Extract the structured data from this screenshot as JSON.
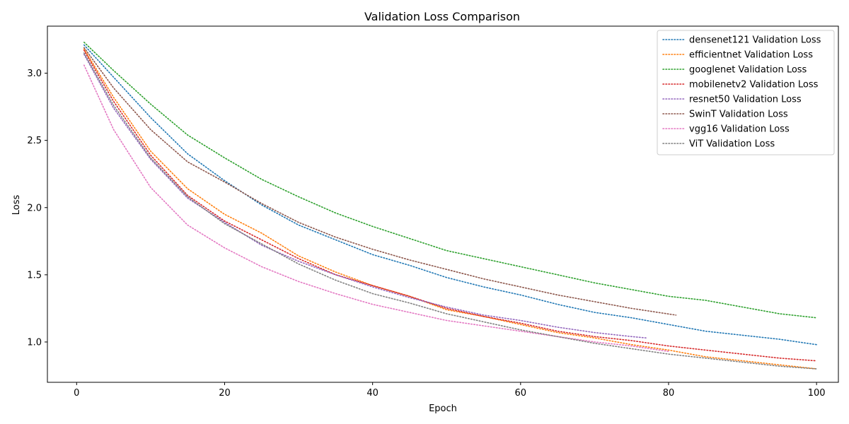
{
  "chart_data": {
    "type": "line",
    "title": "Validation Loss Comparison",
    "xlabel": "Epoch",
    "ylabel": "Loss",
    "xlim": [
      -3.95,
      102.95
    ],
    "ylim": [
      0.7,
      3.35
    ],
    "xticks": [
      0,
      20,
      40,
      60,
      80,
      100
    ],
    "yticks": [
      1.0,
      1.5,
      2.0,
      2.5,
      3.0
    ],
    "grid": false,
    "legend_position": "top-right",
    "line_style": "dotted",
    "series": [
      {
        "name": "densenet121 Validation Loss",
        "color": "#1f77b4",
        "points": [
          [
            1,
            3.21
          ],
          [
            5,
            2.97
          ],
          [
            10,
            2.67
          ],
          [
            15,
            2.4
          ],
          [
            20,
            2.2
          ],
          [
            25,
            2.02
          ],
          [
            30,
            1.87
          ],
          [
            35,
            1.76
          ],
          [
            40,
            1.65
          ],
          [
            45,
            1.57
          ],
          [
            50,
            1.48
          ],
          [
            55,
            1.41
          ],
          [
            60,
            1.35
          ],
          [
            65,
            1.28
          ],
          [
            70,
            1.22
          ],
          [
            75,
            1.18
          ],
          [
            80,
            1.13
          ],
          [
            85,
            1.08
          ],
          [
            90,
            1.05
          ],
          [
            95,
            1.02
          ],
          [
            100,
            0.98
          ]
        ]
      },
      {
        "name": "efficientnet Validation Loss",
        "color": "#ff7f0e",
        "points": [
          [
            1,
            3.18
          ],
          [
            5,
            2.82
          ],
          [
            10,
            2.42
          ],
          [
            15,
            2.14
          ],
          [
            20,
            1.95
          ],
          [
            25,
            1.81
          ],
          [
            30,
            1.64
          ],
          [
            35,
            1.52
          ],
          [
            40,
            1.42
          ],
          [
            45,
            1.34
          ],
          [
            50,
            1.24
          ],
          [
            55,
            1.19
          ],
          [
            60,
            1.13
          ],
          [
            65,
            1.07
          ],
          [
            70,
            1.03
          ],
          [
            75,
            0.98
          ],
          [
            80,
            0.94
          ],
          [
            85,
            0.89
          ],
          [
            90,
            0.86
          ],
          [
            95,
            0.83
          ],
          [
            100,
            0.8
          ]
        ]
      },
      {
        "name": "googlenet Validation Loss",
        "color": "#2ca02c",
        "points": [
          [
            1,
            3.23
          ],
          [
            5,
            3.02
          ],
          [
            10,
            2.77
          ],
          [
            15,
            2.54
          ],
          [
            20,
            2.37
          ],
          [
            25,
            2.21
          ],
          [
            30,
            2.08
          ],
          [
            35,
            1.96
          ],
          [
            40,
            1.86
          ],
          [
            45,
            1.77
          ],
          [
            50,
            1.68
          ],
          [
            55,
            1.62
          ],
          [
            60,
            1.56
          ],
          [
            65,
            1.5
          ],
          [
            70,
            1.44
          ],
          [
            75,
            1.39
          ],
          [
            80,
            1.34
          ],
          [
            85,
            1.31
          ],
          [
            90,
            1.26
          ],
          [
            95,
            1.21
          ],
          [
            100,
            1.18
          ]
        ]
      },
      {
        "name": "mobilenetv2 Validation Loss",
        "color": "#d62728",
        "points": [
          [
            1,
            3.17
          ],
          [
            5,
            2.79
          ],
          [
            10,
            2.39
          ],
          [
            15,
            2.09
          ],
          [
            20,
            1.9
          ],
          [
            25,
            1.76
          ],
          [
            30,
            1.62
          ],
          [
            35,
            1.5
          ],
          [
            40,
            1.42
          ],
          [
            45,
            1.34
          ],
          [
            50,
            1.25
          ],
          [
            55,
            1.19
          ],
          [
            60,
            1.14
          ],
          [
            65,
            1.08
          ],
          [
            70,
            1.04
          ],
          [
            75,
            1.01
          ],
          [
            80,
            0.97
          ],
          [
            85,
            0.94
          ],
          [
            90,
            0.91
          ],
          [
            95,
            0.88
          ],
          [
            100,
            0.86
          ]
        ]
      },
      {
        "name": "resnet50 Validation Loss",
        "color": "#9467bd",
        "points": [
          [
            1,
            3.14
          ],
          [
            5,
            2.74
          ],
          [
            10,
            2.36
          ],
          [
            15,
            2.07
          ],
          [
            20,
            1.89
          ],
          [
            25,
            1.72
          ],
          [
            30,
            1.6
          ],
          [
            35,
            1.5
          ],
          [
            40,
            1.41
          ],
          [
            45,
            1.33
          ],
          [
            50,
            1.26
          ],
          [
            55,
            1.2
          ],
          [
            60,
            1.16
          ],
          [
            65,
            1.11
          ],
          [
            70,
            1.07
          ],
          [
            75,
            1.04
          ],
          [
            77,
            1.03
          ]
        ]
      },
      {
        "name": "SwinT Validation Loss",
        "color": "#8c564b",
        "points": [
          [
            1,
            3.19
          ],
          [
            5,
            2.89
          ],
          [
            10,
            2.58
          ],
          [
            15,
            2.34
          ],
          [
            20,
            2.19
          ],
          [
            25,
            2.03
          ],
          [
            30,
            1.89
          ],
          [
            35,
            1.78
          ],
          [
            40,
            1.69
          ],
          [
            45,
            1.61
          ],
          [
            50,
            1.54
          ],
          [
            55,
            1.47
          ],
          [
            60,
            1.41
          ],
          [
            65,
            1.35
          ],
          [
            70,
            1.3
          ],
          [
            75,
            1.25
          ],
          [
            81,
            1.2
          ]
        ]
      },
      {
        "name": "vgg16 Validation Loss",
        "color": "#e377c2",
        "points": [
          [
            1,
            3.06
          ],
          [
            5,
            2.58
          ],
          [
            10,
            2.15
          ],
          [
            15,
            1.87
          ],
          [
            20,
            1.7
          ],
          [
            25,
            1.56
          ],
          [
            30,
            1.45
          ],
          [
            35,
            1.36
          ],
          [
            40,
            1.28
          ],
          [
            45,
            1.22
          ],
          [
            50,
            1.16
          ],
          [
            55,
            1.12
          ],
          [
            60,
            1.08
          ],
          [
            65,
            1.04
          ],
          [
            70,
            1.0
          ],
          [
            75,
            0.97
          ],
          [
            80,
            0.93
          ]
        ]
      },
      {
        "name": "ViT Validation Loss",
        "color": "#7f7f7f",
        "points": [
          [
            1,
            3.15
          ],
          [
            5,
            2.76
          ],
          [
            10,
            2.37
          ],
          [
            15,
            2.08
          ],
          [
            20,
            1.88
          ],
          [
            25,
            1.73
          ],
          [
            30,
            1.58
          ],
          [
            35,
            1.46
          ],
          [
            40,
            1.36
          ],
          [
            45,
            1.29
          ],
          [
            50,
            1.21
          ],
          [
            55,
            1.15
          ],
          [
            60,
            1.09
          ],
          [
            65,
            1.04
          ],
          [
            70,
            0.99
          ],
          [
            75,
            0.95
          ],
          [
            80,
            0.91
          ],
          [
            85,
            0.88
          ],
          [
            90,
            0.85
          ],
          [
            95,
            0.82
          ],
          [
            100,
            0.8
          ]
        ]
      }
    ]
  }
}
